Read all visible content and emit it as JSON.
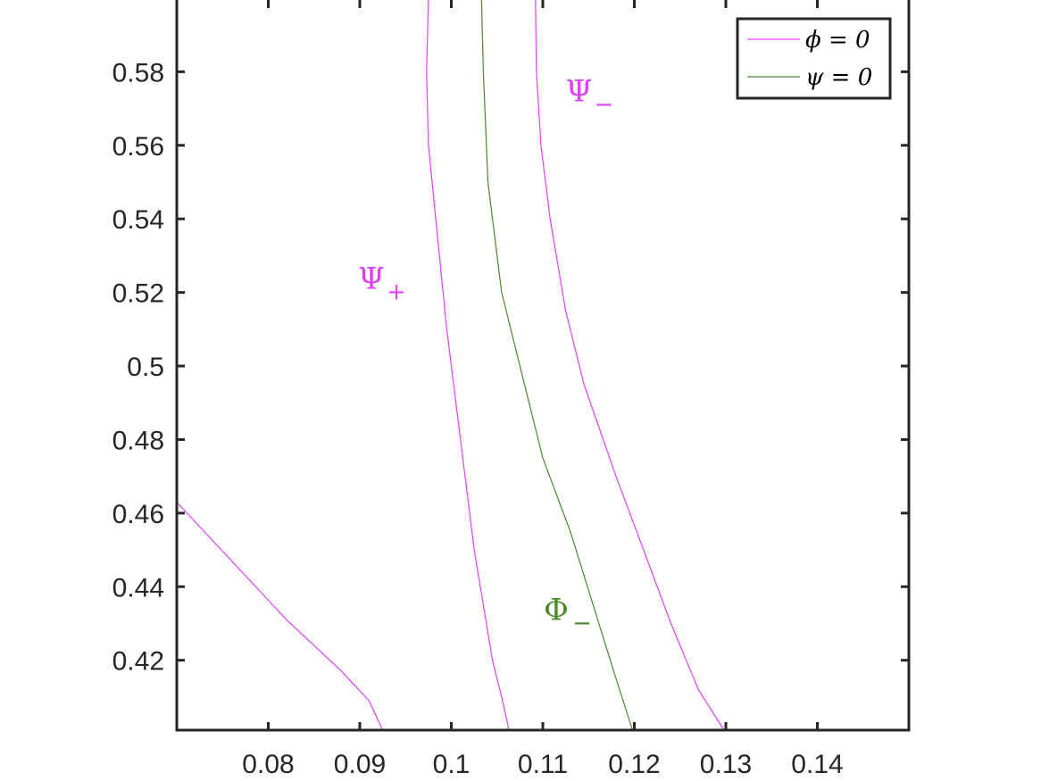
{
  "chart_data": {
    "type": "line",
    "title": "",
    "xlabel": "",
    "ylabel": "",
    "xlim": [
      0.07,
      0.15
    ],
    "ylim": [
      0.401,
      0.6
    ],
    "xticks": [
      "0.08",
      "0.09",
      "0.1",
      "0.11",
      "0.12",
      "0.13",
      "0.14"
    ],
    "yticks": [
      "0.42",
      "0.44",
      "0.46",
      "0.48",
      "0.5",
      "0.52",
      "0.54",
      "0.56",
      "0.58"
    ],
    "legend_position": "top-right",
    "legend": [
      {
        "label": "ϕ = 0",
        "color": "#e040fb"
      },
      {
        "label": "ψ = 0",
        "color": "#4a8a2a"
      }
    ],
    "annotations": [
      {
        "main": "Ψ",
        "sub": "−",
        "color": "#e040fb",
        "x": 0.1125,
        "y": 0.572
      },
      {
        "main": "Ψ",
        "sub": "+",
        "color": "#e040fb",
        "x": 0.0898,
        "y": 0.521
      },
      {
        "main": "Φ",
        "sub": "−",
        "color": "#4a8a2a",
        "x": 0.1101,
        "y": 0.431
      }
    ],
    "series": [
      {
        "color": "#e040fb",
        "x": [
          0.0975,
          0.0973,
          0.0975,
          0.0985,
          0.0995,
          0.1005,
          0.1015,
          0.1025,
          0.1035,
          0.1045,
          0.1055,
          0.1063
        ],
        "y": [
          0.6,
          0.58,
          0.56,
          0.535,
          0.51,
          0.49,
          0.47,
          0.45,
          0.435,
          0.42,
          0.41,
          0.401
        ]
      },
      {
        "color": "#4a8a2a",
        "x": [
          0.1033,
          0.1035,
          0.104,
          0.1055,
          0.108,
          0.11,
          0.113,
          0.1155,
          0.118,
          0.1198
        ],
        "y": [
          0.6,
          0.58,
          0.55,
          0.52,
          0.495,
          0.475,
          0.455,
          0.435,
          0.415,
          0.401
        ]
      },
      {
        "color": "#e040fb",
        "x": [
          0.1092,
          0.1093,
          0.1098,
          0.1108,
          0.1125,
          0.1145,
          0.118,
          0.121,
          0.124,
          0.127,
          0.1298
        ],
        "y": [
          0.6,
          0.58,
          0.56,
          0.54,
          0.515,
          0.495,
          0.47,
          0.45,
          0.43,
          0.412,
          0.401
        ]
      },
      {
        "color": "#e040fb",
        "x": [
          0.07,
          0.073,
          0.076,
          0.079,
          0.082,
          0.085,
          0.088,
          0.091,
          0.0925
        ],
        "y": [
          0.463,
          0.455,
          0.447,
          0.439,
          0.431,
          0.424,
          0.417,
          0.409,
          0.401
        ]
      }
    ]
  }
}
